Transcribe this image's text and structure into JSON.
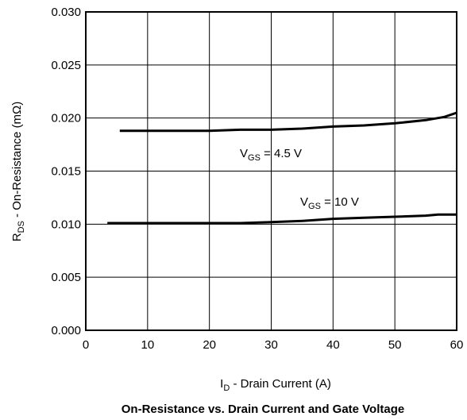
{
  "chart_data": {
    "type": "line",
    "title": "On-Resistance vs. Drain Current and Gate Voltage",
    "xlabel": {
      "main": "I",
      "sub": "D",
      "rest": " - Drain Current (A)"
    },
    "ylabel": {
      "main": "R",
      "sub": "DS",
      "rest": " - On-Resistance  (mΩ)"
    },
    "xlim": [
      0,
      60
    ],
    "ylim": [
      0,
      0.03
    ],
    "x_ticks": [
      "0",
      "10",
      "20",
      "30",
      "40",
      "50",
      "60"
    ],
    "y_ticks": [
      "0.000",
      "0.005",
      "0.010",
      "0.015",
      "0.020",
      "0.025",
      "0.030"
    ],
    "grid": true,
    "series": [
      {
        "name": {
          "main": "V",
          "sub": "GS",
          "rest": " = 4.5 V"
        },
        "x": [
          5.5,
          10,
          15,
          20,
          25,
          30,
          35,
          40,
          45,
          50,
          55,
          58,
          60
        ],
        "y": [
          0.0188,
          0.0188,
          0.0188,
          0.0188,
          0.0189,
          0.0189,
          0.019,
          0.0192,
          0.0193,
          0.0195,
          0.0198,
          0.0201,
          0.0205
        ]
      },
      {
        "name": {
          "main": "V",
          "sub": "GS",
          "rest": " = 10 V"
        },
        "x": [
          3.5,
          10,
          15,
          20,
          25,
          30,
          35,
          40,
          45,
          50,
          55,
          57,
          60
        ],
        "y": [
          0.0101,
          0.0101,
          0.0101,
          0.0101,
          0.0101,
          0.0102,
          0.0103,
          0.0105,
          0.0106,
          0.0107,
          0.0108,
          0.0109,
          0.0109
        ]
      }
    ]
  }
}
